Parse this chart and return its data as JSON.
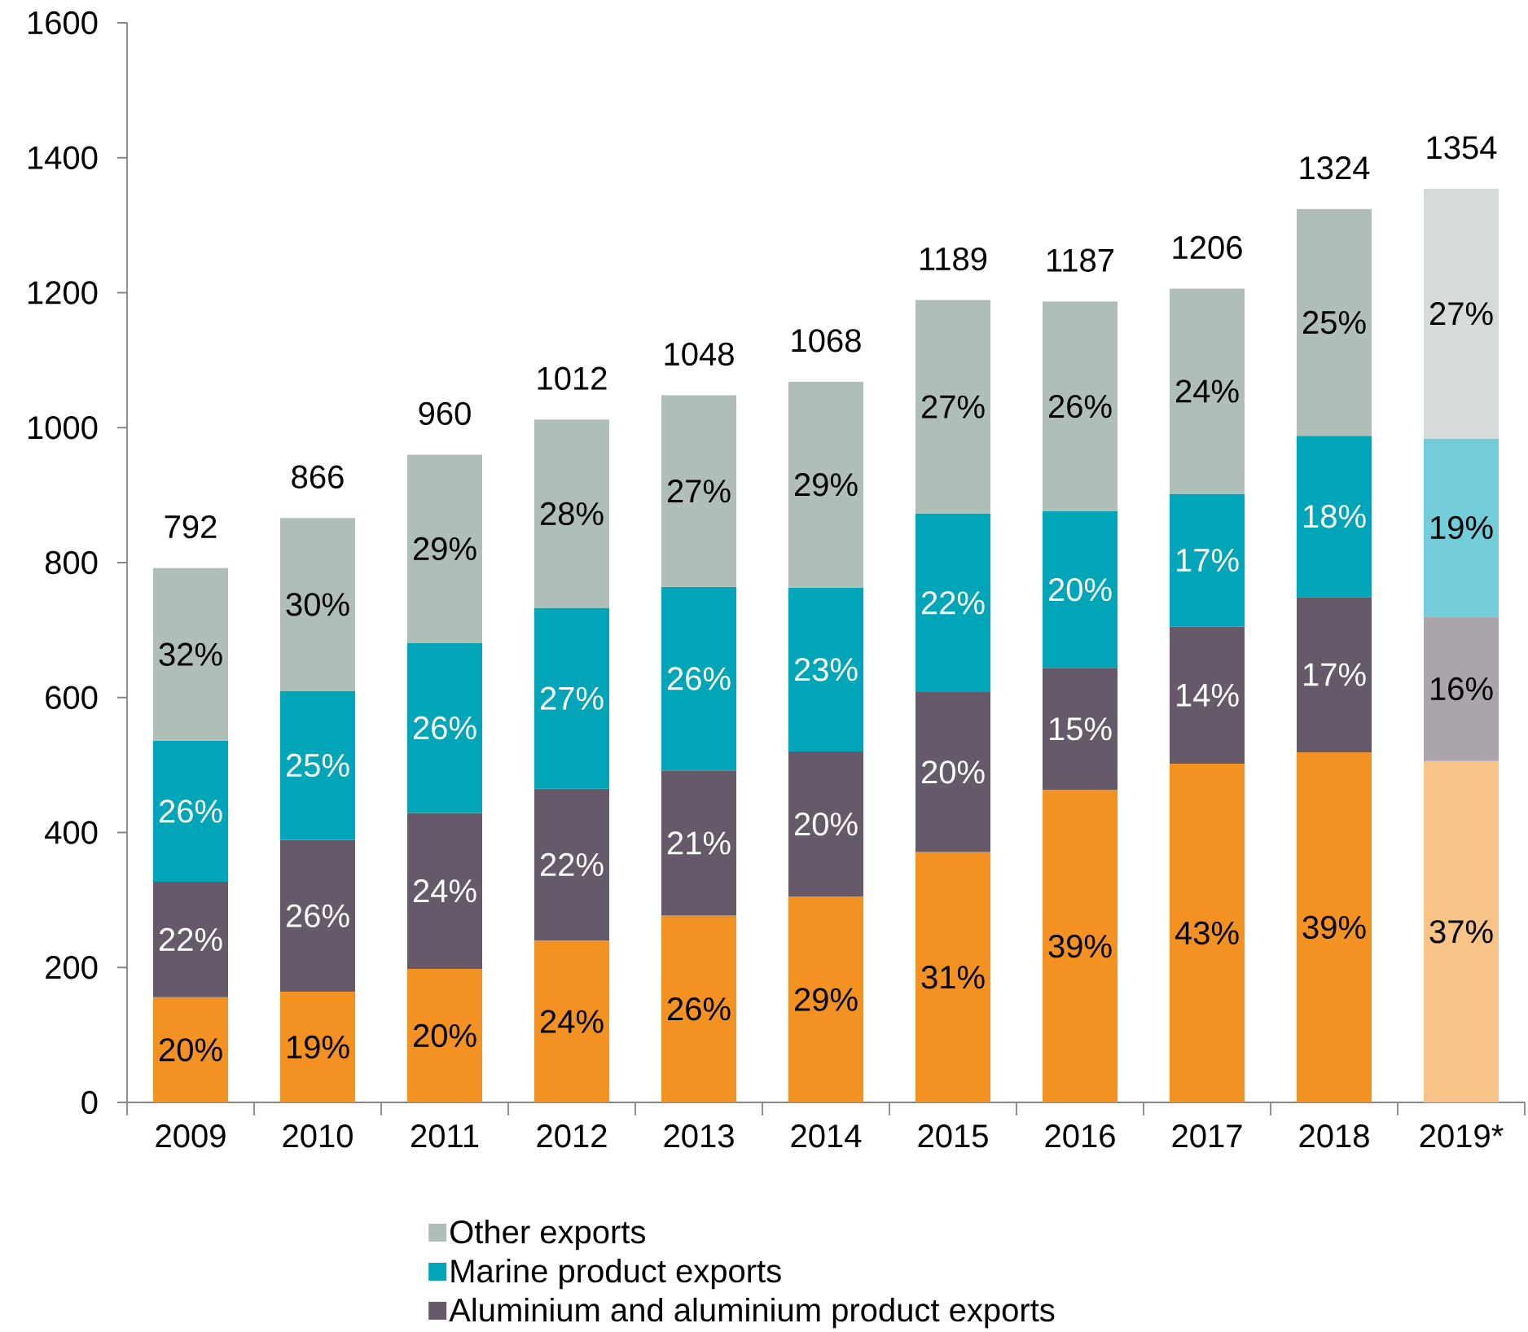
{
  "chart_data": {
    "type": "bar",
    "stacked": true,
    "legend": "bottom",
    "categories": [
      "2009",
      "2010",
      "2011",
      "2012",
      "2013",
      "2014",
      "2015",
      "2016",
      "2017",
      "2018",
      "2019*"
    ],
    "series": [
      {
        "color": "#f39123",
        "colors": [
          "#f39123",
          "#f39123",
          "#f39123",
          "#f39123",
          "#f39123",
          "#f39123",
          "#f39123",
          "#f39123",
          "#f39123",
          "#f39123",
          "#f8c386"
        ],
        "values": [
          156,
          164,
          198,
          240,
          277,
          305,
          371,
          463,
          502,
          519,
          506
        ]
      },
      {
        "name": "Aluminium and aluminium product exports",
        "color": "#665a6a",
        "colors": [
          "#665a6a",
          "#665a6a",
          "#665a6a",
          "#665a6a",
          "#665a6a",
          "#665a6a",
          "#665a6a",
          "#665a6a",
          "#665a6a",
          "#665a6a",
          "#aba4ad"
        ],
        "values": [
          171,
          225,
          231,
          225,
          215,
          215,
          237,
          181,
          203,
          230,
          214
        ]
      },
      {
        "name": "Marine product exports",
        "color": "#00a5b8",
        "colors": [
          "#00a5b8",
          "#00a5b8",
          "#00a5b8",
          "#00a5b8",
          "#00a5b8",
          "#00a5b8",
          "#00a5b8",
          "#00a5b8",
          "#00a5b8",
          "#00a5b8",
          "#73cdd8"
        ],
        "values": [
          209,
          221,
          252,
          268,
          272,
          243,
          265,
          232,
          197,
          239,
          264
        ]
      },
      {
        "name": "Other exports",
        "color": "#b0beb8",
        "colors": [
          "#b0beb8",
          "#b0beb8",
          "#b0beb8",
          "#b0beb8",
          "#b0beb8",
          "#b0beb8",
          "#b0beb8",
          "#b0beb8",
          "#b0beb8",
          "#b0beb8",
          "#d4dbd8"
        ],
        "values": [
          256,
          256,
          279,
          279,
          284,
          305,
          316,
          311,
          304,
          336,
          370
        ]
      }
    ],
    "totals": [
      "792",
      "866",
      "960",
      "1012",
      "1048",
      "1068",
      "1189",
      "1187",
      "1206",
      "1324",
      "1354"
    ],
    "annotations": [
      "20%",
      "19%",
      "20%",
      "24%",
      "26%",
      "29%",
      "31%",
      "39%",
      "43%",
      "39%",
      "37%",
      "22%",
      "26%",
      "24%",
      "22%",
      "21%",
      "20%",
      "20%",
      "15%",
      "14%",
      "17%",
      "16%",
      "26%",
      "25%",
      "26%",
      "27%",
      "26%",
      "23%",
      "22%",
      "20%",
      "17%",
      "18%",
      "19%",
      "32%",
      "30%",
      "29%",
      "28%",
      "27%",
      "29%",
      "27%",
      "26%",
      "24%",
      "25%",
      "27%"
    ],
    "ylim": [
      0,
      1600
    ],
    "yticks": [
      0,
      200,
      400,
      600,
      800,
      1000,
      1200,
      1400,
      1600
    ]
  }
}
